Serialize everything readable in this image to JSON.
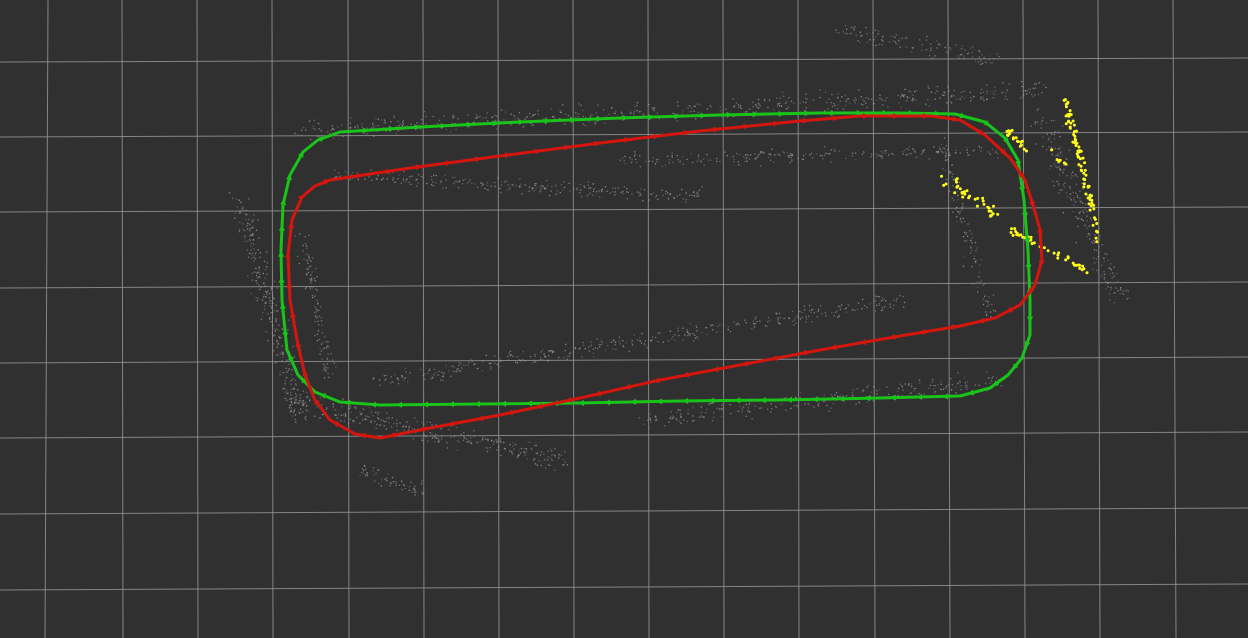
{
  "viewport": {
    "background": "#303030",
    "grid_color": "#9a9a9a"
  },
  "trajectories": [
    {
      "name": "green-trajectory",
      "color": "#19c319"
    },
    {
      "name": "red-trajectory",
      "color": "#d4160f"
    }
  ],
  "point_clouds": {
    "map_points_color": "#9b9b9b",
    "active_points_color": "#ffff1e"
  }
}
